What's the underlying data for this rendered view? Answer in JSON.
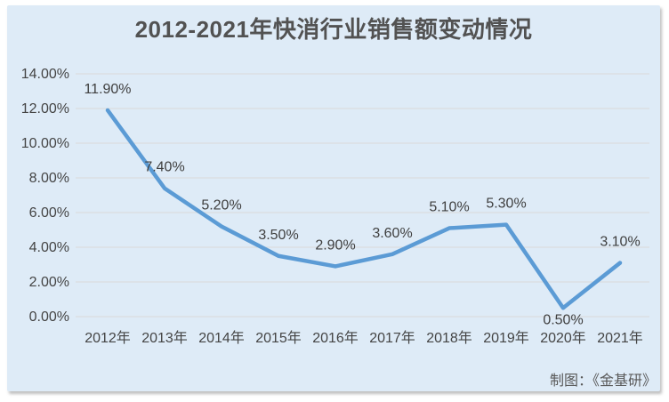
{
  "panel": {
    "background": "#DEEBF7"
  },
  "chart_data": {
    "type": "line",
    "title": "2012-2021年快消行业销售额变动情况",
    "categories": [
      "2012年",
      "2013年",
      "2014年",
      "2015年",
      "2016年",
      "2017年",
      "2018年",
      "2019年",
      "2020年",
      "2021年"
    ],
    "values": [
      11.9,
      7.4,
      5.2,
      3.5,
      2.9,
      3.6,
      5.1,
      5.3,
      0.5,
      3.1
    ],
    "point_labels": [
      "11.90%",
      "7.40%",
      "5.20%",
      "3.50%",
      "2.90%",
      "3.60%",
      "5.10%",
      "5.30%",
      "0.50%",
      "3.10%"
    ],
    "y_ticks": [
      "14.00%",
      "12.00%",
      "10.00%",
      "8.00%",
      "6.00%",
      "4.00%",
      "2.00%",
      "0.00%"
    ],
    "ylim": [
      0,
      14
    ],
    "xlabel": "",
    "ylabel": "",
    "grid": true,
    "legend": "none",
    "label_below_indices": [
      8
    ],
    "colors": {
      "line": "#5B9BD5",
      "grid": "#D9D9D9",
      "axis_text": "#444444",
      "label_text": "#3F3F3F",
      "title_text": "#525252"
    }
  },
  "footer": {
    "credit": "制图：《金基研》"
  }
}
